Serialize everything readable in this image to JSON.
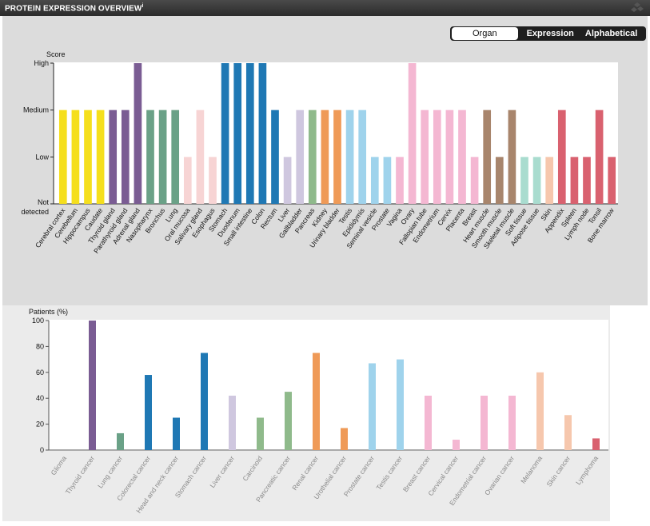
{
  "header": {
    "title": "PROTEIN EXPRESSION OVERVIEW",
    "title_marker": "i"
  },
  "sort_buttons": {
    "organ": "Organ",
    "expression": "Expression",
    "alphabetical": "Alphabetical",
    "active": "Organ"
  },
  "chart_data": [
    {
      "type": "bar",
      "ylabel": "Score",
      "y_levels": [
        "Not detected",
        "Low",
        "Medium",
        "High"
      ],
      "y_level_labels": [
        "Not",
        "detected",
        "Low",
        "Medium",
        "High"
      ],
      "categories": [
        "Cerebral cortex",
        "Cerebellum",
        "Hippocampus",
        "Caudate",
        "Thyroid gland",
        "Parathyroid gland",
        "Adrenal gland",
        "Nasopharynx",
        "Bronchus",
        "Lung",
        "Oral mucosa",
        "Salivary gland",
        "Esophagus",
        "Stomach",
        "Duodenum",
        "Small intestine",
        "Colon",
        "Rectum",
        "Liver",
        "Gallbladder",
        "Pancreas",
        "Kidney",
        "Urinary bladder",
        "Testis",
        "Epididymis",
        "Seminal vesicle",
        "Prostate",
        "Vagina",
        "Ovary",
        "Fallopian tube",
        "Endometrium",
        "Cervix",
        "Placenta",
        "Breast",
        "Heart muscle",
        "Smooth muscle",
        "Skeletal muscle",
        "Soft tissue",
        "Adipose tissue",
        "Skin",
        "Appendix",
        "Spleen",
        "Lymph node",
        "Tonsil",
        "Bone marrow"
      ],
      "values": [
        2,
        2,
        2,
        2,
        2,
        2,
        3,
        2,
        2,
        2,
        1,
        2,
        1,
        3,
        3,
        3,
        3,
        2,
        1,
        2,
        2,
        2,
        2,
        2,
        2,
        1,
        1,
        1,
        3,
        2,
        2,
        2,
        2,
        1,
        2,
        1,
        2,
        1,
        1,
        1,
        2,
        1,
        1,
        2,
        1
      ],
      "colors": [
        "#f5df1d",
        "#f5df1d",
        "#f5df1d",
        "#f5df1d",
        "#7a5c93",
        "#7a5c93",
        "#7a5c93",
        "#6aa187",
        "#6aa187",
        "#6aa187",
        "#f7d4d4",
        "#f7d4d4",
        "#f7d4d4",
        "#1f78b4",
        "#1f78b4",
        "#1f78b4",
        "#1f78b4",
        "#1f78b4",
        "#cfc7df",
        "#cfc7df",
        "#8fba8b",
        "#ef9a57",
        "#ef9a57",
        "#9fd3ec",
        "#9fd3ec",
        "#9fd3ec",
        "#9fd3ec",
        "#f4b7d2",
        "#f4b7d2",
        "#f4b7d2",
        "#f4b7d2",
        "#f4b7d2",
        "#f4b7d2",
        "#f4b7d2",
        "#a8856c",
        "#a8856c",
        "#a8856c",
        "#a9dccf",
        "#a9dccf",
        "#f6c7ad",
        "#d9616f",
        "#d9616f",
        "#d9616f",
        "#d9616f",
        "#d9616f"
      ],
      "ylim": [
        0,
        3
      ],
      "grid": false
    },
    {
      "type": "bar",
      "ylabel": "Patients (%)",
      "categories": [
        "Glioma",
        "Thyroid cancer",
        "Lung cancer",
        "Colorectal cancer",
        "Head and neck cancer",
        "Stomach cancer",
        "Liver cancer",
        "Carcinoid",
        "Pancreatic cancer",
        "Renal cancer",
        "Urothelial cancer",
        "Prostate cancer",
        "Testis cancer",
        "Breast cancer",
        "Cervical cancer",
        "Endometrial cancer",
        "Ovarian cancer",
        "Melanoma",
        "Skin cancer",
        "Lymphoma"
      ],
      "values": [
        0,
        100,
        13,
        58,
        25,
        75,
        42,
        25,
        45,
        75,
        17,
        67,
        70,
        42,
        8,
        42,
        42,
        60,
        27,
        9
      ],
      "colors": [
        "#bbbbbb",
        "#7a5c93",
        "#6aa187",
        "#1f78b4",
        "#1f78b4",
        "#1f78b4",
        "#cfc7df",
        "#8fba8b",
        "#8fba8b",
        "#ef9a57",
        "#ef9a57",
        "#9fd3ec",
        "#9fd3ec",
        "#f4b7d2",
        "#f4b7d2",
        "#f4b7d2",
        "#f4b7d2",
        "#f6c7ad",
        "#f6c7ad",
        "#d9616f"
      ],
      "yticks": [
        0,
        20,
        40,
        60,
        80,
        100
      ],
      "ylim": [
        0,
        100
      ],
      "grid": false
    }
  ]
}
